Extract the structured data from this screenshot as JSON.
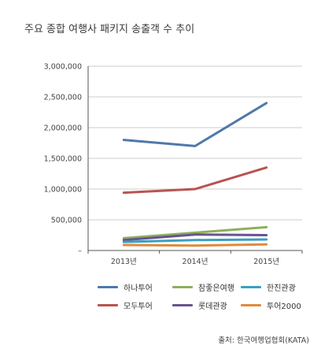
{
  "title": "주요 종합 여행사 패키지 송출객 수 추이",
  "source": "출처: 한국여행업협회(KATA)",
  "chart_data": {
    "type": "line",
    "x": [
      "2013년",
      "2014년",
      "2015년"
    ],
    "ylim": [
      0,
      3000000
    ],
    "yticks": [
      0,
      500000,
      1000000,
      1500000,
      2000000,
      2500000,
      3000000
    ],
    "ytick_labels": [
      "–",
      "500,000",
      "1,000,000",
      "1,500,000",
      "2,000,000",
      "2,500,000",
      "3,000,000"
    ],
    "grid": true,
    "legend_position": "bottom",
    "series": [
      {
        "name": "하나투어",
        "color": "#4e79ab",
        "values": [
          1800000,
          1700000,
          2400000
        ]
      },
      {
        "name": "모두투어",
        "color": "#b85450",
        "values": [
          940000,
          1000000,
          1350000
        ]
      },
      {
        "name": "참좋은여행",
        "color": "#8db05a",
        "values": [
          200000,
          290000,
          380000
        ]
      },
      {
        "name": "롯데관광",
        "color": "#6a5290",
        "values": [
          170000,
          260000,
          250000
        ]
      },
      {
        "name": "한진관광",
        "color": "#3aa0c0",
        "values": [
          140000,
          170000,
          180000
        ]
      },
      {
        "name": "투어2000",
        "color": "#e08a3c",
        "values": [
          90000,
          80000,
          100000
        ]
      }
    ]
  }
}
